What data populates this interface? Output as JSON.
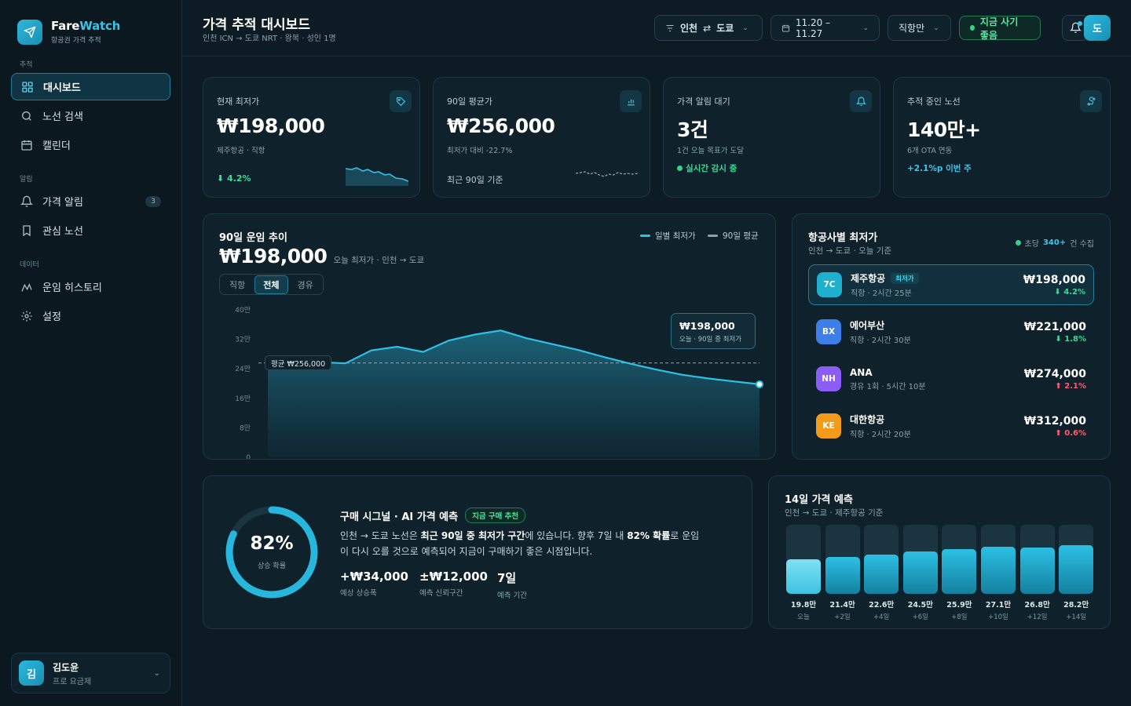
{
  "app": {
    "name_a": "Fare",
    "name_b": "Watch",
    "subtitle": "항공권 가격 추적"
  },
  "sidebar": {
    "sections": [
      {
        "label": "추적"
      },
      {
        "label": "알림"
      },
      {
        "label": "데이터"
      }
    ],
    "items": [
      {
        "label": "대시보드",
        "icon": "grid-icon",
        "active": true
      },
      {
        "label": "노선 검색",
        "icon": "search-icon"
      },
      {
        "label": "캘린더",
        "icon": "calendar-icon"
      },
      {
        "label": "가격 알림",
        "icon": "bell-icon",
        "badge": "3"
      },
      {
        "label": "관심 노선",
        "icon": "bookmark-icon"
      },
      {
        "label": "운임 히스토리",
        "icon": "trend-icon"
      },
      {
        "label": "설정",
        "icon": "gear-icon"
      }
    ],
    "user": {
      "initial": "김",
      "name": "김도윤",
      "plan": "프로 요금제"
    }
  },
  "header": {
    "title": "가격 추적 대시보드",
    "subtitle": "인천 ICN → 도쿄 NRT · 왕복 · 성인 1명",
    "route_from": "인천",
    "route_swap": "⇄",
    "route_to": "도쿄",
    "dates": "11.20 – 11.27",
    "filter": "직항만",
    "status": "지금 사기 좋음",
    "profile_initial": "도"
  },
  "stats": [
    {
      "label": "현재 최저가",
      "value": "₩198,000",
      "sub": "제주항공 · 직항",
      "foot": "⬇ 4.2%",
      "icon": "tag-icon"
    },
    {
      "label": "90일 평균가",
      "value": "₩256,000",
      "sub": "최저가 대비 -22.7%",
      "foot": "최근 90일 기준",
      "icon": "bar-chart-icon"
    },
    {
      "label": "가격 알림 대기",
      "value": "3건",
      "sub": "1건 오늘 목표가 도달",
      "foot": "실시간 감시 중",
      "icon": "bell-icon"
    },
    {
      "label": "추적 중인 노선",
      "value": "140만+",
      "sub": "6개 OTA 연동",
      "foot": "+2.1%p 이번 주",
      "icon": "route-icon"
    }
  ],
  "trend": {
    "title": "90일 운임 추이",
    "price": "₩198,000",
    "caption": "오늘 최저가 · 인천 → 도쿄",
    "tabs": [
      "직항",
      "전체",
      "경유"
    ],
    "active_tab": "전체",
    "legend_daily": "일별 최저가",
    "legend_avg": "90일 평균",
    "avg_label": "평균 ₩256,000",
    "tooltip_price": "₩198,000",
    "tooltip_note": "오늘 · 90일 중 최저가"
  },
  "airlines": {
    "title": "항공사별 최저가",
    "subtitle": "인천 → 도쿄 · 오늘 기준",
    "live_prefix": "초당",
    "live_count": "340+",
    "live_suffix": "건 수집",
    "rows": [
      {
        "code": "7C",
        "name": "제주항공",
        "tag": "최저가",
        "meta": "직항 · 2시간 25분",
        "price": "₩198,000",
        "delta": "⬇ 4.2%",
        "dir": "down",
        "color": "#1fb0d0"
      },
      {
        "code": "BX",
        "name": "에어부산",
        "tag": "",
        "meta": "직항 · 2시간 30분",
        "price": "₩221,000",
        "delta": "⬇ 1.8%",
        "dir": "down",
        "color": "#3d7ee8"
      },
      {
        "code": "NH",
        "name": "ANA",
        "tag": "",
        "meta": "경유 1회 · 5시간 10분",
        "price": "₩274,000",
        "delta": "⬆ 2.1%",
        "dir": "up",
        "color": "#8b5cf6"
      },
      {
        "code": "KE",
        "name": "대한항공",
        "tag": "",
        "meta": "직항 · 2시간 20분",
        "price": "₩312,000",
        "delta": "⬆ 0.6%",
        "dir": "up",
        "color": "#f29a1a"
      }
    ]
  },
  "signal": {
    "percent": "82%",
    "ring_fraction": 0.82,
    "ring_label": "상승 확률",
    "title": "구매 시그널 · AI 가격 예측",
    "badge": "지금 구매 추천",
    "text_1": "인천 → 도쿄 노선은 ",
    "text_b1": "최근 90일 중 최저가 구간",
    "text_2": "에 있습니다. 향후 7일 내 ",
    "text_b2": "82% 확률",
    "text_3": "로 운임",
    "text_4": "이 다시 오를 것으로 예측되어 지금이 구매하기 좋은 시점입니다.",
    "stats": [
      {
        "value": "+₩34,000",
        "label": "예상 상승폭"
      },
      {
        "value": "±₩12,000",
        "label": "예측 신뢰구간"
      },
      {
        "value": "7일",
        "label": "예측 기간"
      }
    ]
  },
  "forecast": {
    "title": "14일 가격 예측",
    "subtitle": "인천 → 도쿄 · 제주항공 기준"
  },
  "chart_data": [
    {
      "type": "area",
      "title": "90일 운임 추이",
      "ylabel": "",
      "y_tick_labels": [
        "0",
        "8만",
        "16만",
        "24만",
        "32만",
        "40만"
      ],
      "ylim": [
        0,
        400000
      ],
      "grid": false,
      "series": [
        {
          "name": "일별 최저가",
          "values": [
            256000,
            262000,
            258000,
            255000,
            290000,
            300000,
            286000,
            317000,
            333000,
            344000,
            323000,
            307000,
            291000,
            272000,
            254000,
            238000,
            224000,
            214000,
            206000,
            198000
          ]
        },
        {
          "name": "90일 평균",
          "values": [
            256000,
            256000
          ]
        }
      ]
    },
    {
      "type": "bar",
      "title": "14일 가격 예측",
      "categories": [
        "오늘",
        "+2일",
        "+4일",
        "+6일",
        "+8일",
        "+10일",
        "+12일",
        "+14일"
      ],
      "values": [
        198000,
        214000,
        226000,
        245000,
        259000,
        271000,
        268000,
        282000
      ],
      "value_labels": [
        "19.8만",
        "21.4만",
        "22.6만",
        "24.5만",
        "25.9만",
        "27.1만",
        "26.8만",
        "28.2만"
      ],
      "ylim": [
        0,
        400000
      ]
    }
  ],
  "colors": {
    "accent": "#2ec0e6",
    "positive": "#3fd99a",
    "negative": "#ff5a72",
    "background": "#0c1b24"
  }
}
